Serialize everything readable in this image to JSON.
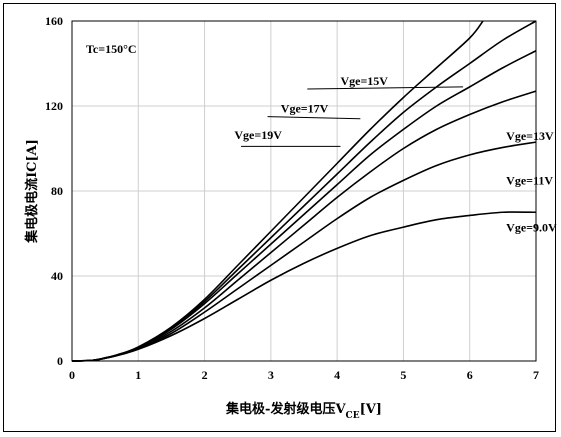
{
  "chart_data": {
    "type": "line",
    "xlabel_main": "集电极-发射级电压V",
    "xlabel_sub": "CE",
    "xlabel_unit": "[V]",
    "ylabel": "集电极电流IC[A]",
    "annotation": "Tc=150°C",
    "xlim": [
      0,
      7
    ],
    "ylim": [
      0,
      160
    ],
    "xticks": [
      0,
      1,
      2,
      3,
      4,
      5,
      6,
      7
    ],
    "yticks": [
      0,
      40,
      80,
      120,
      160
    ],
    "grid": true,
    "series": [
      {
        "name": "Vge=9.0V",
        "x": [
          0,
          0.3,
          0.5,
          0.7,
          1.0,
          1.5,
          2.0,
          2.5,
          3.0,
          3.5,
          4.0,
          4.5,
          5.0,
          5.5,
          6.0,
          6.5,
          7.0
        ],
        "y": [
          0,
          0.3,
          1.3,
          2.7,
          5.5,
          12,
          20,
          29,
          38,
          46,
          53,
          59,
          63,
          66.5,
          68.5,
          70,
          70
        ]
      },
      {
        "name": "Vge=11V",
        "x": [
          0,
          0.3,
          0.5,
          0.7,
          1.0,
          1.5,
          2.0,
          2.5,
          3.0,
          3.5,
          4.0,
          4.5,
          5.0,
          5.5,
          6.0,
          6.5,
          7.0
        ],
        "y": [
          0,
          0.3,
          1.3,
          2.8,
          5.8,
          13,
          23,
          34,
          45,
          56,
          67,
          77,
          85,
          92,
          97,
          100.5,
          103
        ]
      },
      {
        "name": "Vge=13V",
        "x": [
          0,
          0.3,
          0.5,
          0.7,
          1.0,
          1.5,
          2.0,
          2.5,
          3.0,
          3.5,
          4.0,
          4.5,
          5.0,
          5.5,
          6.0,
          6.5,
          7.0
        ],
        "y": [
          0,
          0.3,
          1.3,
          2.9,
          6,
          14,
          25,
          38,
          51,
          64,
          77,
          89,
          100,
          109,
          116,
          122,
          127
        ]
      },
      {
        "name": "Vge=19V",
        "x": [
          0,
          0.3,
          0.5,
          0.7,
          1.0,
          1.5,
          2.0,
          2.5,
          3.0,
          3.5,
          4.0,
          4.5,
          5.0,
          5.5,
          6.0,
          6.5,
          7.0
        ],
        "y": [
          0,
          0.3,
          1.4,
          3.0,
          6.2,
          15,
          27,
          41,
          55,
          69,
          83,
          97,
          109,
          120,
          129,
          138,
          146
        ]
      },
      {
        "name": "Vge=17V",
        "x": [
          0,
          0.3,
          0.5,
          0.7,
          1.0,
          1.5,
          2.0,
          2.5,
          3.0,
          3.5,
          4.0,
          4.5,
          5.0,
          5.5,
          6.0,
          6.5,
          7.0
        ],
        "y": [
          0,
          0.3,
          1.4,
          3.0,
          6.4,
          15.5,
          28,
          43,
          58,
          73,
          88,
          103,
          117,
          129,
          140,
          151,
          160
        ]
      },
      {
        "name": "Vge=15V",
        "x": [
          0,
          0.3,
          0.5,
          0.7,
          1.0,
          1.5,
          2.0,
          2.5,
          3.0,
          3.5,
          4.0,
          4.5,
          5.0,
          5.5,
          6.0,
          6.2
        ],
        "y": [
          0,
          0.3,
          1.5,
          3.1,
          6.6,
          16,
          29,
          45,
          61,
          77,
          93,
          109,
          124,
          138,
          152,
          160
        ]
      }
    ],
    "labels": [
      {
        "text": "Vge=15V",
        "series": "Vge=15V",
        "lx": 4.05,
        "ly": 130,
        "ax": 3.55,
        "ay": 128,
        "bx": 5.9,
        "by": 129
      },
      {
        "text": "Vge=17V",
        "series": "Vge=17V",
        "lx": 3.15,
        "ly": 117,
        "ax": 2.95,
        "ay": 115,
        "bx": 4.35,
        "by": 114
      },
      {
        "text": "Vge=19V",
        "series": "Vge=19V",
        "lx": 2.45,
        "ly": 104.5,
        "ax": 2.55,
        "ay": 101,
        "bx": 4.05,
        "by": 101
      },
      {
        "text": "Vge=13V",
        "series": "Vge=13V",
        "lx": 6.55,
        "ly": 104,
        "ax": null,
        "ay": null,
        "bx": null,
        "by": null
      },
      {
        "text": "Vge=11V",
        "series": "Vge=11V",
        "lx": 6.55,
        "ly": 83,
        "ax": null,
        "ay": null,
        "bx": null,
        "by": null
      },
      {
        "text": "Vge=9.0V",
        "series": "Vge=9.0V",
        "lx": 6.55,
        "ly": 61,
        "ax": null,
        "ay": null,
        "bx": null,
        "by": null
      }
    ]
  }
}
